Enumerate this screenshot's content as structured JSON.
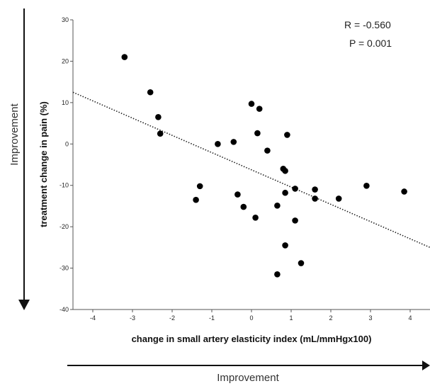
{
  "chart_data": {
    "type": "scatter",
    "xlabel": "change in small artery elasticity index (mL/mmHgx100)",
    "ylabel": "treatment change in pain (%)",
    "xlim": [
      -4.5,
      4.5
    ],
    "ylim": [
      -40,
      30
    ],
    "xticks": [
      -4,
      -3,
      -2,
      -1,
      0,
      1,
      2,
      3,
      4
    ],
    "yticks": [
      -40,
      -30,
      -20,
      -10,
      0,
      10,
      20,
      30
    ],
    "grid": false,
    "annotations": [
      "R = -0.560",
      "P = 0.001"
    ],
    "trendline": {
      "style": "dotted",
      "x": [
        -4.5,
        4.5
      ],
      "y": [
        12.5,
        -25.0
      ]
    },
    "points": [
      {
        "x": -3.2,
        "y": 21
      },
      {
        "x": -2.55,
        "y": 12.5
      },
      {
        "x": -2.35,
        "y": 6.5
      },
      {
        "x": -2.3,
        "y": 2.5
      },
      {
        "x": -1.4,
        "y": -13.5
      },
      {
        "x": -1.3,
        "y": -10.2
      },
      {
        "x": -0.85,
        "y": 0
      },
      {
        "x": -0.45,
        "y": 0.5
      },
      {
        "x": -0.35,
        "y": -12.2
      },
      {
        "x": -0.2,
        "y": -15.2
      },
      {
        "x": 0.0,
        "y": 9.7
      },
      {
        "x": 0.1,
        "y": -17.8
      },
      {
        "x": 0.15,
        "y": 2.6
      },
      {
        "x": 0.2,
        "y": 8.5
      },
      {
        "x": 0.4,
        "y": -1.6
      },
      {
        "x": 0.65,
        "y": -14.9
      },
      {
        "x": 0.65,
        "y": -31.5
      },
      {
        "x": 0.8,
        "y": -6.0
      },
      {
        "x": 0.85,
        "y": -6.5
      },
      {
        "x": 0.85,
        "y": -11.8
      },
      {
        "x": 0.85,
        "y": -24.5
      },
      {
        "x": 0.9,
        "y": 2.2
      },
      {
        "x": 1.1,
        "y": -18.5
      },
      {
        "x": 1.1,
        "y": -10.8
      },
      {
        "x": 1.25,
        "y": -28.8
      },
      {
        "x": 1.6,
        "y": -11.0
      },
      {
        "x": 1.6,
        "y": -13.2
      },
      {
        "x": 2.2,
        "y": -13.2
      },
      {
        "x": 2.9,
        "y": -10.1
      },
      {
        "x": 3.85,
        "y": -11.5
      }
    ]
  },
  "side_arrow_label": "Improvement",
  "bottom_arrow_label": "Improvement"
}
